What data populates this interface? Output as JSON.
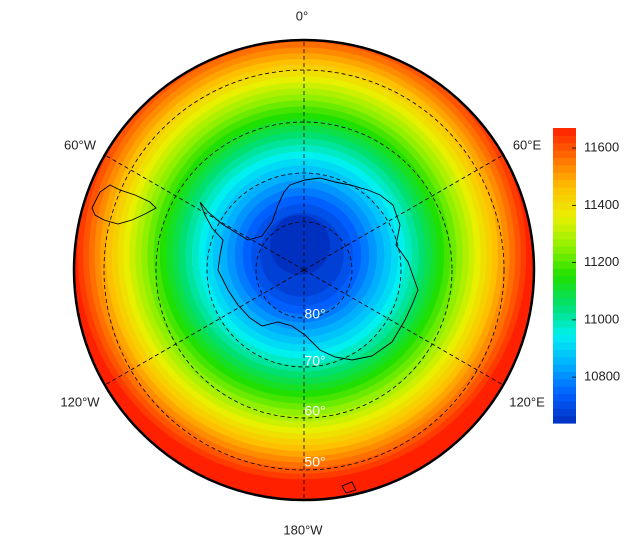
{
  "map": {
    "longitude_labels": [
      "0°",
      "60°E",
      "120°E",
      "180°W",
      "120°W",
      "60°W"
    ],
    "latitude_labels": [
      "80°",
      "70°",
      "60°",
      "50°"
    ],
    "colorbar": {
      "range": [
        10640,
        11670
      ],
      "ticks": [
        10800,
        11000,
        11200,
        11400,
        11600
      ],
      "colors": [
        "#0030c0",
        "#0060ff",
        "#00b0ff",
        "#00f0f0",
        "#00e070",
        "#20e000",
        "#90f000",
        "#e8f000",
        "#ffc000",
        "#ff7000",
        "#ff2000"
      ]
    }
  }
}
